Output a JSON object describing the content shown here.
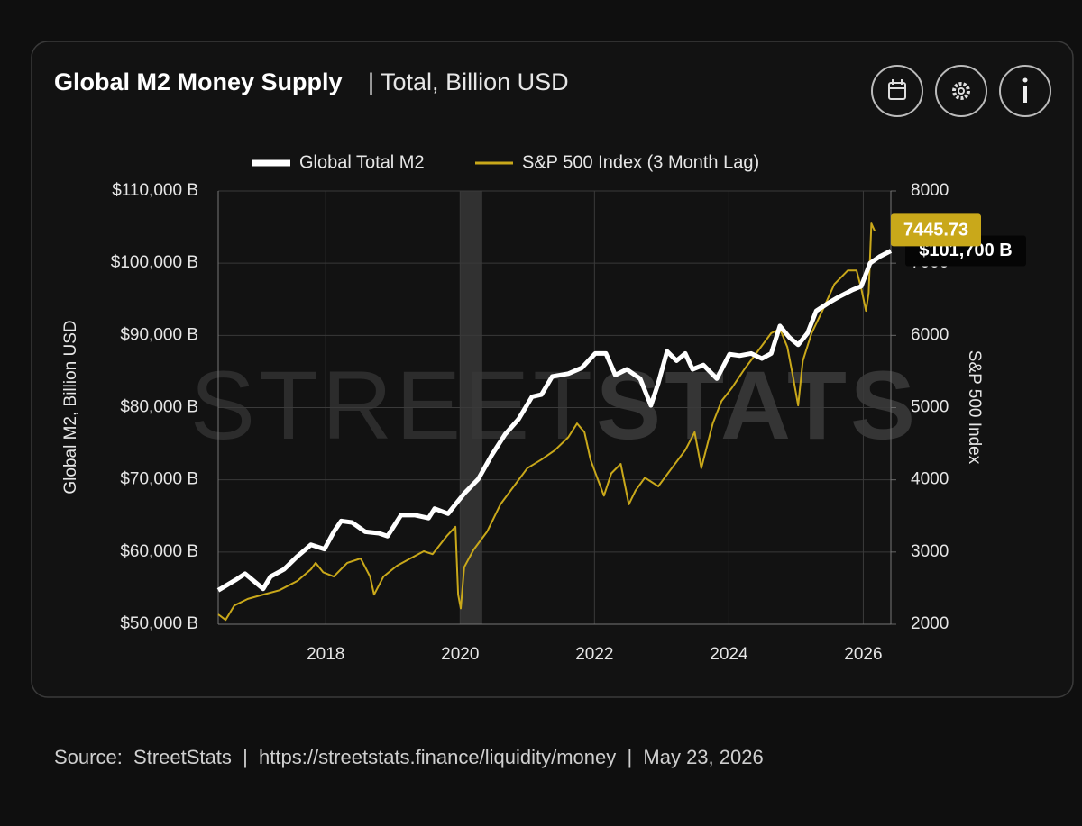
{
  "chart_data": {
    "type": "line",
    "title": "Global M2 Money Supply",
    "subtitle": "| Total, Billion USD",
    "watermark": [
      "STREET",
      "STATS"
    ],
    "footer": "Source:  StreetStats  |  https://streetstats.finance/liquidity/money  |  May 23, 2026",
    "y_label": "Global M2, Billion USD",
    "y2_label": "S&P 500 Index",
    "xlim": [
      2016.4,
      2026.41
    ],
    "xticks": [
      2018,
      2020,
      2022,
      2024,
      2026
    ],
    "ylim": [
      50000,
      110000
    ],
    "yticks": [
      {
        "value": 50000,
        "label": "$50,000 B"
      },
      {
        "value": 60000,
        "label": "$60,000 B"
      },
      {
        "value": 70000,
        "label": "$70,000 B"
      },
      {
        "value": 80000,
        "label": "$80,000 B"
      },
      {
        "value": 90000,
        "label": "$90,000 B"
      },
      {
        "value": 100000,
        "label": "$100,000 B"
      },
      {
        "value": 110000,
        "label": "$110,000 B"
      }
    ],
    "y2lim": [
      2000,
      8000
    ],
    "y2ticks": [
      2000,
      3000,
      4000,
      5000,
      6000,
      7000,
      8000
    ],
    "grid": true,
    "legend": "top",
    "highlight_band": [
      2020.0,
      2020.33
    ],
    "series": [
      {
        "name": "Global Total M2",
        "color": "#ffffff",
        "axis": "y",
        "end_label": "$101,700 B",
        "x": [
          2016.4,
          2016.67,
          2016.8,
          2017.07,
          2017.18,
          2017.38,
          2017.58,
          2017.78,
          2017.98,
          2018.12,
          2018.23,
          2018.39,
          2018.59,
          2018.79,
          2018.92,
          2019.12,
          2019.33,
          2019.53,
          2019.62,
          2019.82,
          2019.93,
          2020.06,
          2020.27,
          2020.47,
          2020.67,
          2020.87,
          2021.07,
          2021.21,
          2021.37,
          2021.61,
          2021.81,
          2022.01,
          2022.17,
          2022.31,
          2022.48,
          2022.68,
          2022.84,
          2022.95,
          2023.08,
          2023.22,
          2023.35,
          2023.46,
          2023.62,
          2023.82,
          2024.01,
          2024.16,
          2024.33,
          2024.49,
          2024.63,
          2024.76,
          2024.9,
          2025.03,
          2025.17,
          2025.3,
          2025.5,
          2025.63,
          2025.84,
          2025.97,
          2026.1,
          2026.24,
          2026.41
        ],
        "values": [
          54700,
          56200,
          57000,
          54900,
          56600,
          57600,
          59400,
          61000,
          60400,
          62800,
          64300,
          64100,
          62800,
          62600,
          62200,
          65100,
          65100,
          64700,
          66000,
          65300,
          66600,
          68100,
          70100,
          73400,
          76300,
          78400,
          81500,
          81800,
          84300,
          84700,
          85500,
          87500,
          87500,
          84500,
          85300,
          84000,
          80300,
          83400,
          87800,
          86500,
          87500,
          85300,
          85900,
          84000,
          87400,
          87200,
          87500,
          86800,
          87500,
          91300,
          89700,
          88700,
          90300,
          93400,
          94600,
          95300,
          96300,
          96800,
          100000,
          100900,
          101700
        ]
      },
      {
        "name": "S&P 500 Index (3 Month Lag)",
        "color": "#c9a81a",
        "axis": "y2",
        "x": [
          2016.4,
          2016.51,
          2016.64,
          2016.84,
          2017.07,
          2017.31,
          2017.58,
          2017.78,
          2017.85,
          2017.96,
          2018.12,
          2018.32,
          2018.52,
          2018.66,
          2018.72,
          2018.86,
          2019.06,
          2019.26,
          2019.46,
          2019.59,
          2019.8,
          2019.93,
          2019.97,
          2020.01,
          2020.06,
          2020.2,
          2020.4,
          2020.6,
          2020.8,
          2021.0,
          2021.21,
          2021.41,
          2021.61,
          2021.74,
          2021.85,
          2021.94,
          2022.04,
          2022.14,
          2022.25,
          2022.39,
          2022.51,
          2022.61,
          2022.75,
          2022.95,
          2023.15,
          2023.35,
          2023.49,
          2023.59,
          2023.76,
          2023.89,
          2024.05,
          2024.23,
          2024.43,
          2024.63,
          2024.76,
          2024.87,
          2024.96,
          2025.03,
          2025.1,
          2025.23,
          2025.39,
          2025.57,
          2025.77,
          2025.9,
          2025.97,
          2026.04,
          2026.08,
          2026.12,
          2026.17
        ],
        "values": [
          2137,
          2060,
          2260,
          2350,
          2410,
          2470,
          2600,
          2760,
          2850,
          2720,
          2660,
          2850,
          2910,
          2660,
          2410,
          2660,
          2810,
          2910,
          3010,
          2970,
          3220,
          3350,
          2410,
          2220,
          2790,
          3030,
          3280,
          3660,
          3910,
          4160,
          4280,
          4410,
          4590,
          4780,
          4660,
          4280,
          4030,
          3780,
          4090,
          4220,
          3660,
          3850,
          4030,
          3910,
          4160,
          4410,
          4660,
          4160,
          4780,
          5090,
          5280,
          5530,
          5780,
          6030,
          6090,
          5840,
          5400,
          5030,
          5650,
          6030,
          6340,
          6710,
          6900,
          6900,
          6650,
          6340,
          6590,
          7550,
          7445.73
        ]
      }
    ]
  }
}
